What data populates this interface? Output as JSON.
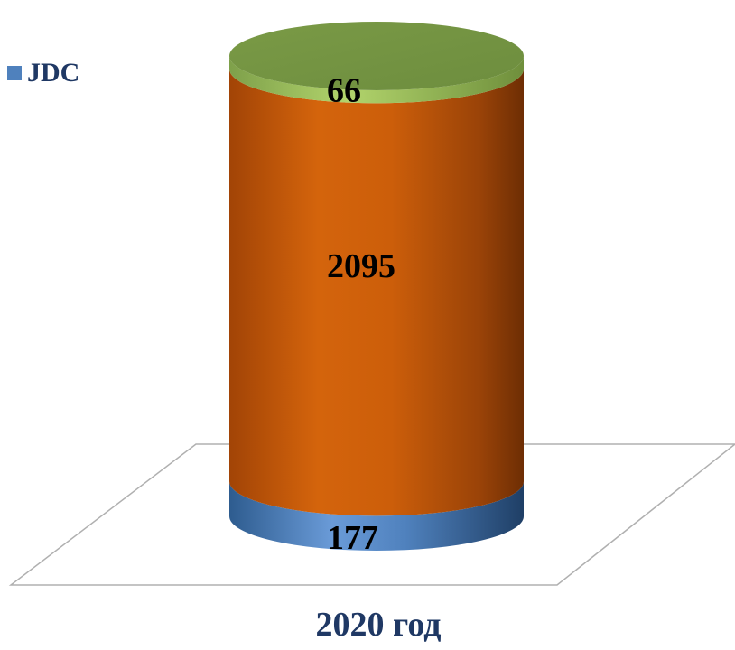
{
  "chart_data": {
    "type": "bar",
    "subtype": "stacked-3d-cylinder",
    "categories": [
      "2020 год"
    ],
    "series": [
      {
        "name": "JDC",
        "values": [
          177
        ],
        "color": "#4f81bd"
      },
      {
        "name": "",
        "values": [
          2095
        ],
        "color": "#c55a0f"
      },
      {
        "name": "",
        "values": [
          66
        ],
        "color": "#9bbb59"
      }
    ],
    "data_labels": [
      "177",
      "2095",
      "66"
    ],
    "legend": {
      "position": "top-left",
      "entries": [
        "JDC"
      ]
    },
    "grid": false,
    "title": "",
    "xlabel": "",
    "ylabel": ""
  }
}
